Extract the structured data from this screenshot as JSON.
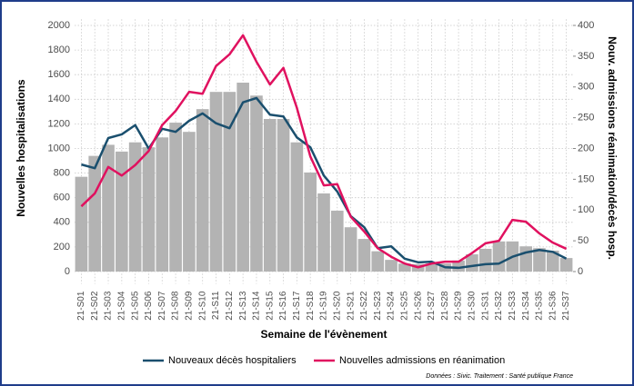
{
  "chart_data": {
    "type": "bar-line",
    "y_label": "Nouvelles hospitalisations",
    "y2_label": "Nouv. admissions réanimation/décès hosp.",
    "x_label": "Semaine de l'évènement",
    "note": "Données : Sivic. Traitement : Santé publique France",
    "categories": [
      "21-S01",
      "21-S02",
      "21-S03",
      "21-S04",
      "21-S05",
      "21-S06",
      "21-S07",
      "21-S08",
      "21-S09",
      "21-S10",
      "21-S11",
      "21-S12",
      "21-S13",
      "21-S14",
      "21-S15",
      "21-S16",
      "21-S17",
      "21-S18",
      "21-S19",
      "21-S20",
      "21-S21",
      "21-S22",
      "21-S23",
      "21-S24",
      "21-S25",
      "21-S26",
      "21-S27",
      "21-S28",
      "21-S29",
      "21-S30",
      "21-S31",
      "21-S32",
      "21-S33",
      "21-S34",
      "21-S35",
      "21-S36",
      "21-S37"
    ],
    "bars": {
      "color": "#b3b3b3",
      "values": [
        770,
        940,
        1030,
        975,
        1050,
        1010,
        1090,
        1210,
        1135,
        1320,
        1460,
        1460,
        1535,
        1430,
        1240,
        1240,
        1050,
        805,
        635,
        495,
        360,
        265,
        165,
        95,
        65,
        60,
        65,
        65,
        90,
        140,
        185,
        245,
        245,
        205,
        190,
        170,
        110
      ]
    },
    "series": [
      {
        "name": "Nouveaux décès hospitaliers",
        "color": "#1a4f6e",
        "axis": "y2",
        "values": [
          174,
          168,
          217,
          223,
          238,
          200,
          232,
          227,
          245,
          257,
          241,
          233,
          275,
          282,
          255,
          252,
          218,
          202,
          156,
          130,
          90,
          72,
          38,
          41,
          21,
          15,
          16,
          7,
          6,
          9,
          12,
          13,
          24,
          31,
          35,
          32,
          21
        ]
      },
      {
        "name": "Nouvelles admissions en réanimation",
        "color": "#e0115f",
        "axis": "y2",
        "values": [
          106,
          127,
          170,
          156,
          173,
          196,
          238,
          261,
          292,
          289,
          334,
          353,
          384,
          341,
          304,
          331,
          266,
          187,
          140,
          142,
          89,
          65,
          38,
          24,
          13,
          7,
          13,
          16,
          16,
          30,
          46,
          50,
          84,
          81,
          62,
          47,
          37
        ]
      }
    ],
    "ylim": [
      -100,
      2050
    ],
    "yticks": [
      0,
      200,
      400,
      600,
      800,
      1000,
      1200,
      1400,
      1600,
      1800,
      2000
    ],
    "y2lim": [
      -20,
      410
    ],
    "y2ticks": [
      0,
      50,
      100,
      150,
      200,
      250,
      300,
      350,
      400
    ],
    "grid": true
  }
}
